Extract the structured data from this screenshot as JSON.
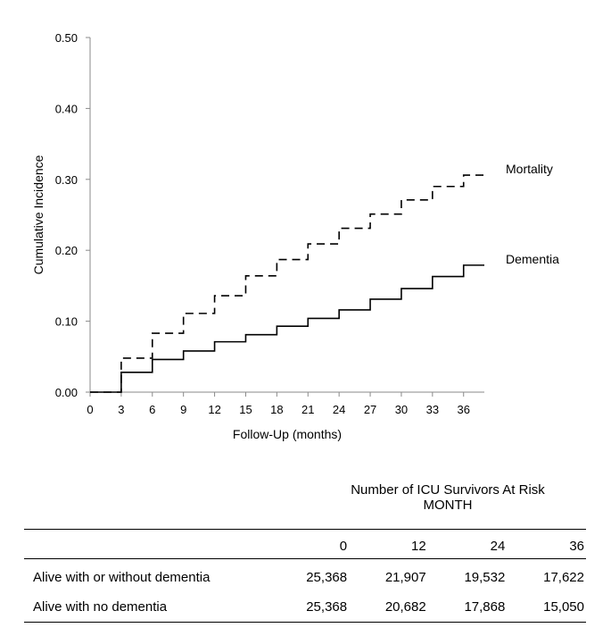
{
  "chart_data": {
    "type": "line",
    "step": true,
    "xlabel": "Follow-Up (months)",
    "ylabel": "Cumulative Incidence",
    "xlim": [
      0,
      38
    ],
    "ylim": [
      0,
      0.5
    ],
    "xticks": [
      0,
      3,
      6,
      9,
      12,
      15,
      18,
      21,
      24,
      27,
      30,
      33,
      36
    ],
    "yticks": [
      0.0,
      0.1,
      0.2,
      0.3,
      0.4,
      0.5
    ],
    "ytick_labels": [
      "0.00",
      "0.10",
      "0.20",
      "0.30",
      "0.40",
      "0.50"
    ],
    "series": [
      {
        "name": "Mortality",
        "style": "dashed",
        "x": [
          0,
          3,
          6,
          9,
          12,
          15,
          18,
          21,
          24,
          27,
          30,
          33,
          36,
          38
        ],
        "y": [
          0.0,
          0.048,
          0.083,
          0.111,
          0.136,
          0.164,
          0.187,
          0.209,
          0.231,
          0.251,
          0.271,
          0.29,
          0.306,
          0.306
        ]
      },
      {
        "name": "Dementia",
        "style": "solid",
        "x": [
          0,
          3,
          6,
          9,
          12,
          15,
          18,
          21,
          24,
          27,
          30,
          33,
          36,
          38
        ],
        "y": [
          0.0,
          0.028,
          0.046,
          0.058,
          0.071,
          0.081,
          0.093,
          0.104,
          0.116,
          0.131,
          0.146,
          0.163,
          0.179,
          0.179
        ]
      }
    ]
  },
  "risk_table": {
    "title_line1": "Number of ICU Survivors At Risk",
    "title_line2": "MONTH",
    "months": [
      "0",
      "12",
      "24",
      "36"
    ],
    "rows": [
      {
        "label": "Alive with or without dementia",
        "values": [
          "25,368",
          "21,907",
          "19,532",
          "17,622"
        ]
      },
      {
        "label": "Alive with no dementia",
        "values": [
          "25,368",
          "20,682",
          "17,868",
          "15,050"
        ]
      }
    ]
  }
}
